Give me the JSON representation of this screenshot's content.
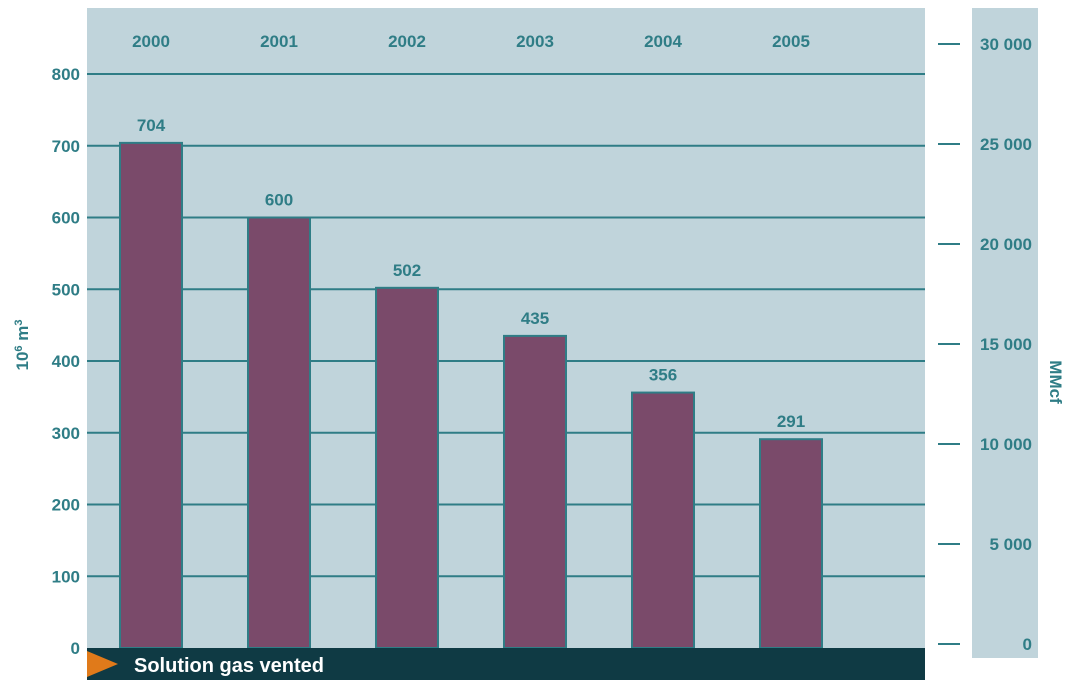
{
  "chart_data": {
    "type": "bar",
    "categories": [
      "2000",
      "2001",
      "2002",
      "2003",
      "2004",
      "2005"
    ],
    "values": [
      704,
      600,
      502,
      435,
      356,
      291
    ],
    "data_labels": [
      "704",
      "600",
      "502",
      "435",
      "356",
      "291"
    ],
    "ylim": [
      0,
      800
    ],
    "y_ticks": [
      0,
      100,
      200,
      300,
      400,
      500,
      600,
      700,
      800
    ],
    "y_tick_labels": [
      "0",
      "100",
      "200",
      "300",
      "400",
      "500",
      "600",
      "700",
      "800"
    ],
    "ylabel": {
      "base": "10",
      "exp1": "6",
      "unit": " m",
      "exp2": "3"
    },
    "y2lim": [
      0,
      30000
    ],
    "y2_ticks": [
      0,
      5000,
      10000,
      15000,
      20000,
      25000,
      30000
    ],
    "y2_tick_labels": [
      "0",
      "5 000",
      "10 000",
      "15 000",
      "20 000",
      "25 000",
      "30 000"
    ],
    "y2label": "MMcf",
    "grid": true,
    "category_labels_position": "top"
  },
  "footer": {
    "label": "Solution gas vented"
  },
  "colors": {
    "plot_background": "#c0d4db",
    "bar": "#7a4a6a",
    "bar_edge": "#2f7d86",
    "gridline": "#2f7d86",
    "text": "#2f7d86",
    "footer_band": "#0f3a44",
    "footer_text": "#ffffff",
    "marker": "#e07a1a",
    "page_background": "#ffffff"
  }
}
